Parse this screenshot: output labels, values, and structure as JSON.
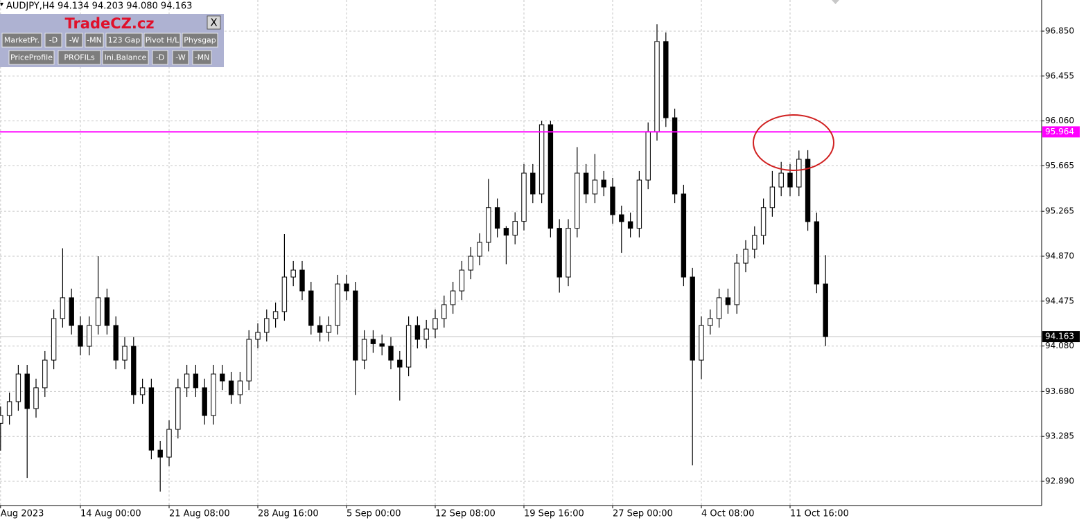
{
  "chart_data": {
    "type": "candlestick",
    "title": "AUDJPY,H4  94.134 94.203 94.080 94.163",
    "open": [
      93.4,
      93.469,
      93.591,
      93.834,
      93.53,
      93.713,
      93.956,
      94.322,
      94.505,
      94.261,
      94.078,
      94.261,
      94.505,
      94.261,
      93.956,
      94.078,
      93.652,
      93.713,
      93.164,
      93.103,
      93.347,
      93.713,
      93.834,
      93.713,
      93.469,
      93.834,
      93.773,
      93.652,
      93.773,
      94.139,
      94.2,
      94.322,
      94.383,
      94.687,
      94.748,
      94.565,
      94.261,
      94.2,
      94.261,
      94.626,
      94.565,
      93.956,
      94.139,
      94.1,
      94.078,
      93.956,
      93.895,
      94.261,
      94.139,
      94.23,
      94.322,
      94.444,
      94.565,
      94.748,
      94.87,
      94.992,
      95.298,
      95.116,
      95.055,
      95.177,
      95.601,
      95.418,
      96.027,
      95.116,
      94.687,
      95.116,
      95.601,
      95.418,
      95.54,
      95.479,
      95.235,
      95.174,
      95.116,
      95.54,
      95.967,
      96.759,
      96.088,
      95.418,
      94.687,
      93.956,
      94.261,
      94.322,
      94.505,
      94.444,
      94.809,
      94.931,
      95.053,
      95.298,
      95.479,
      95.601,
      95.479,
      95.723,
      95.174,
      94.626
    ],
    "high": [
      93.549,
      93.671,
      93.914,
      93.914,
      93.793,
      94.036,
      94.402,
      94.94,
      94.585,
      94.341,
      94.341,
      94.87,
      94.585,
      94.341,
      94.158,
      94.158,
      93.793,
      93.793,
      93.244,
      93.427,
      93.793,
      93.914,
      93.914,
      93.793,
      93.914,
      93.914,
      93.853,
      93.853,
      94.219,
      94.28,
      94.402,
      94.463,
      95.065,
      94.828,
      94.828,
      94.645,
      94.341,
      94.341,
      94.706,
      94.706,
      94.645,
      94.219,
      94.219,
      94.18,
      94.158,
      94.036,
      94.341,
      94.341,
      94.31,
      94.402,
      94.524,
      94.645,
      94.828,
      94.95,
      95.072,
      95.55,
      95.378,
      95.135,
      95.257,
      95.681,
      95.681,
      96.06,
      96.06,
      95.196,
      95.196,
      95.83,
      95.681,
      95.77,
      95.62,
      95.559,
      95.315,
      95.254,
      95.62,
      96.047,
      96.91,
      96.839,
      96.168,
      95.498,
      94.767,
      94.341,
      94.402,
      94.585,
      94.585,
      94.889,
      95.011,
      95.133,
      95.378,
      95.62,
      95.7,
      95.681,
      95.8,
      95.803,
      95.254,
      94.88
    ],
    "low": [
      93.16,
      93.389,
      93.511,
      92.92,
      93.45,
      93.633,
      93.876,
      94.242,
      94.181,
      93.998,
      93.998,
      94.181,
      94.181,
      93.876,
      93.876,
      93.572,
      93.572,
      93.084,
      92.8,
      93.023,
      93.267,
      93.633,
      93.633,
      93.389,
      93.389,
      93.693,
      93.572,
      93.572,
      93.693,
      94.059,
      94.12,
      94.242,
      94.303,
      94.607,
      94.485,
      94.181,
      94.12,
      94.12,
      94.181,
      94.485,
      93.65,
      93.876,
      94.02,
      93.998,
      93.876,
      93.6,
      93.815,
      94.059,
      94.059,
      94.15,
      94.242,
      94.364,
      94.485,
      94.668,
      94.79,
      94.912,
      95.036,
      94.8,
      94.975,
      95.097,
      95.338,
      95.338,
      95.036,
      94.55,
      94.607,
      95.036,
      95.338,
      95.338,
      95.399,
      95.155,
      94.9,
      95.036,
      95.036,
      95.46,
      95.887,
      96.008,
      95.338,
      94.607,
      93.03,
      93.79,
      94.181,
      94.242,
      94.364,
      94.364,
      94.729,
      94.851,
      94.973,
      95.218,
      95.399,
      95.399,
      95.399,
      95.094,
      94.546,
      94.08
    ],
    "close": [
      93.469,
      93.591,
      93.834,
      93.53,
      93.713,
      93.956,
      94.322,
      94.505,
      94.261,
      94.078,
      94.261,
      94.505,
      94.261,
      93.956,
      94.078,
      93.652,
      93.713,
      93.164,
      93.103,
      93.347,
      93.713,
      93.834,
      93.713,
      93.469,
      93.834,
      93.773,
      93.652,
      93.773,
      94.139,
      94.2,
      94.322,
      94.383,
      94.687,
      94.748,
      94.565,
      94.261,
      94.2,
      94.261,
      94.626,
      94.565,
      93.956,
      94.139,
      94.1,
      94.078,
      93.956,
      93.895,
      94.261,
      94.139,
      94.23,
      94.322,
      94.444,
      94.565,
      94.748,
      94.87,
      94.992,
      95.298,
      95.116,
      95.055,
      95.177,
      95.601,
      95.418,
      96.027,
      95.116,
      94.687,
      95.116,
      95.601,
      95.418,
      95.54,
      95.479,
      95.235,
      95.174,
      95.116,
      95.54,
      95.967,
      96.759,
      96.088,
      95.418,
      94.687,
      93.956,
      94.261,
      94.322,
      94.505,
      94.444,
      94.809,
      94.931,
      95.053,
      95.298,
      95.479,
      95.601,
      95.479,
      95.723,
      95.174,
      94.626,
      94.163
    ],
    "up_color": "#ffffff",
    "down_color": "#000000",
    "xlim": [
      -0.0625,
      117.36
    ],
    "xticks": [
      {
        "value": 0,
        "label": "Aug 2023"
      },
      {
        "value": 9,
        "label": "14 Aug 00:00"
      },
      {
        "value": 19,
        "label": "21 Aug 08:00"
      },
      {
        "value": 29,
        "label": "28 Aug 16:00"
      },
      {
        "value": 39,
        "label": "5 Sep 00:00"
      },
      {
        "value": 49,
        "label": "12 Sep 08:00"
      },
      {
        "value": 59,
        "label": "19 Sep 16:00"
      },
      {
        "value": 69,
        "label": "27 Sep 00:00"
      },
      {
        "value": 79,
        "label": "4 Oct 08:00"
      },
      {
        "value": 89,
        "label": "11 Oct 16:00"
      }
    ],
    "ylim": [
      92.677,
      97.124
    ],
    "yticks": [
      {
        "value": 96.85,
        "label": "96.850"
      },
      96.455,
      {
        "value": 96.06,
        "label": "96.060"
      },
      95.665,
      95.265,
      {
        "value": 94.87,
        "label": "94.870"
      },
      94.475,
      {
        "value": 94.08,
        "label": "94.080"
      },
      {
        "value": 93.68,
        "label": "93.680"
      },
      93.285,
      {
        "value": 92.89,
        "label": "92.890"
      }
    ],
    "grid": true,
    "level": {
      "value": 95.964,
      "color": "#ff00ff"
    },
    "last_price": {
      "value": 94.163,
      "color": "#c0c0c0"
    }
  },
  "panel": {
    "title": "TradeCZ.cz",
    "close": "X",
    "buttons": [
      [
        "MarketPr.",
        "-D",
        "-W",
        "-MN",
        "123 Gap",
        "Pivot H/L",
        "Physgap"
      ],
      [
        "PriceProfile",
        "PROFILs",
        "Ini.Balance",
        "-D",
        "-W",
        "-MN"
      ]
    ]
  }
}
